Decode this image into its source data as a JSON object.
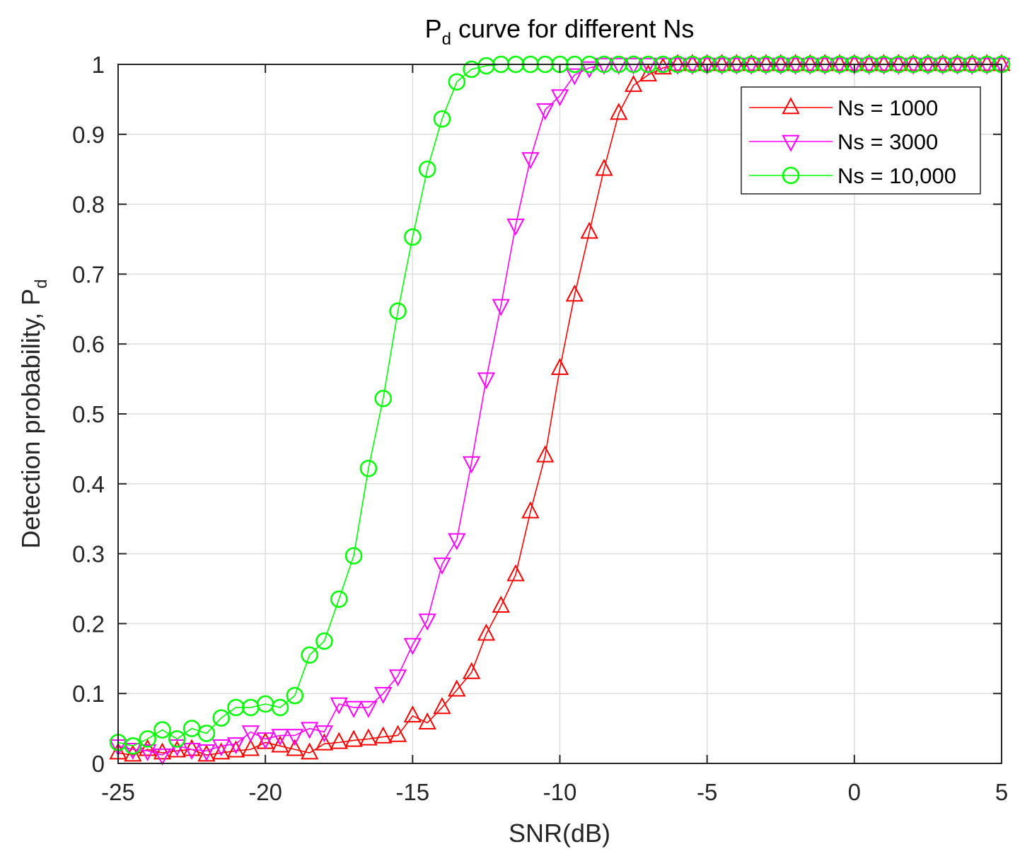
{
  "chart_data": {
    "type": "line",
    "title": "P",
    "title_subscript": "d",
    "title_rest": " curve for different Ns",
    "xlabel": "SNR(dB)",
    "ylabel": "Detection probability, P",
    "ylabel_subscript": "d",
    "xlim": [
      -25,
      5
    ],
    "ylim": [
      0,
      1
    ],
    "grid": true,
    "legend_position": "top-right",
    "x_ticks": [
      -25,
      -20,
      -15,
      -10,
      -5,
      0,
      5
    ],
    "x_tick_labels": [
      "-25",
      "-20",
      "-15",
      "-10",
      "-5",
      "0",
      "5"
    ],
    "y_ticks": [
      0,
      0.1,
      0.2,
      0.3,
      0.4,
      0.5,
      0.6,
      0.7,
      0.8,
      0.9,
      1
    ],
    "y_tick_labels": [
      "0",
      "0.1",
      "0.2",
      "0.3",
      "0.4",
      "0.5",
      "0.6",
      "0.7",
      "0.8",
      "0.9",
      "1"
    ],
    "x": [
      -25,
      -24.5,
      -24,
      -23.5,
      -23,
      -22.5,
      -22,
      -21.5,
      -21,
      -20.5,
      -20,
      -19.5,
      -19,
      -18.5,
      -18,
      -17.5,
      -17,
      -16.5,
      -16,
      -15.5,
      -15,
      -14.5,
      -14,
      -13.5,
      -13,
      -12.5,
      -12,
      -11.5,
      -11,
      -10.5,
      -10,
      -9.5,
      -9,
      -8.5,
      -8,
      -7.5,
      -7,
      -6.5,
      -6,
      -5.5,
      -5,
      -4.5,
      -4,
      -3.5,
      -3,
      -2.5,
      -2,
      -1.5,
      -1,
      -0.5,
      0,
      0.5,
      1,
      1.5,
      2,
      2.5,
      3,
      3.5,
      4,
      4.5,
      5
    ],
    "series": [
      {
        "name": "Ns = 1000",
        "color": "#ff0000",
        "marker": "triangle-up",
        "values": [
          0.015,
          0.012,
          0.02,
          0.015,
          0.018,
          0.02,
          0.012,
          0.015,
          0.018,
          0.02,
          0.03,
          0.025,
          0.02,
          0.015,
          0.028,
          0.03,
          0.033,
          0.035,
          0.038,
          0.04,
          0.068,
          0.058,
          0.08,
          0.105,
          0.13,
          0.185,
          0.225,
          0.27,
          0.36,
          0.44,
          0.565,
          0.67,
          0.76,
          0.85,
          0.93,
          0.97,
          0.985,
          0.995,
          1,
          1,
          1,
          1,
          1,
          1,
          1,
          1,
          1,
          1,
          1,
          1,
          1,
          1,
          1,
          1,
          1,
          1,
          1,
          1,
          1,
          1,
          1
        ]
      },
      {
        "name": "Ns = 3000",
        "color": "#ff00ff",
        "marker": "triangle-down",
        "values": [
          0.025,
          0.02,
          0.018,
          0.012,
          0.025,
          0.02,
          0.018,
          0.025,
          0.028,
          0.045,
          0.035,
          0.04,
          0.04,
          0.05,
          0.045,
          0.085,
          0.08,
          0.08,
          0.1,
          0.125,
          0.17,
          0.205,
          0.285,
          0.32,
          0.43,
          0.55,
          0.655,
          0.77,
          0.865,
          0.935,
          0.955,
          0.985,
          0.995,
          1,
          1,
          1,
          1,
          1,
          1,
          1,
          1,
          1,
          1,
          1,
          1,
          1,
          1,
          1,
          1,
          1,
          1,
          1,
          1,
          1,
          1,
          1,
          1,
          1,
          1,
          1,
          1
        ]
      },
      {
        "name": "Ns = 10,000",
        "color": "#00ff00",
        "marker": "circle",
        "values": [
          0.03,
          0.025,
          0.035,
          0.048,
          0.035,
          0.05,
          0.043,
          0.065,
          0.08,
          0.08,
          0.085,
          0.08,
          0.097,
          0.155,
          0.175,
          0.235,
          0.297,
          0.422,
          0.522,
          0.647,
          0.753,
          0.85,
          0.922,
          0.975,
          0.993,
          0.998,
          1,
          1,
          1,
          1,
          1,
          1,
          1,
          1,
          1,
          1,
          1,
          1,
          1,
          1,
          1,
          1,
          1,
          1,
          1,
          1,
          1,
          1,
          1,
          1,
          1,
          1,
          1,
          1,
          1,
          1,
          1,
          1,
          1,
          1,
          1
        ]
      }
    ]
  }
}
